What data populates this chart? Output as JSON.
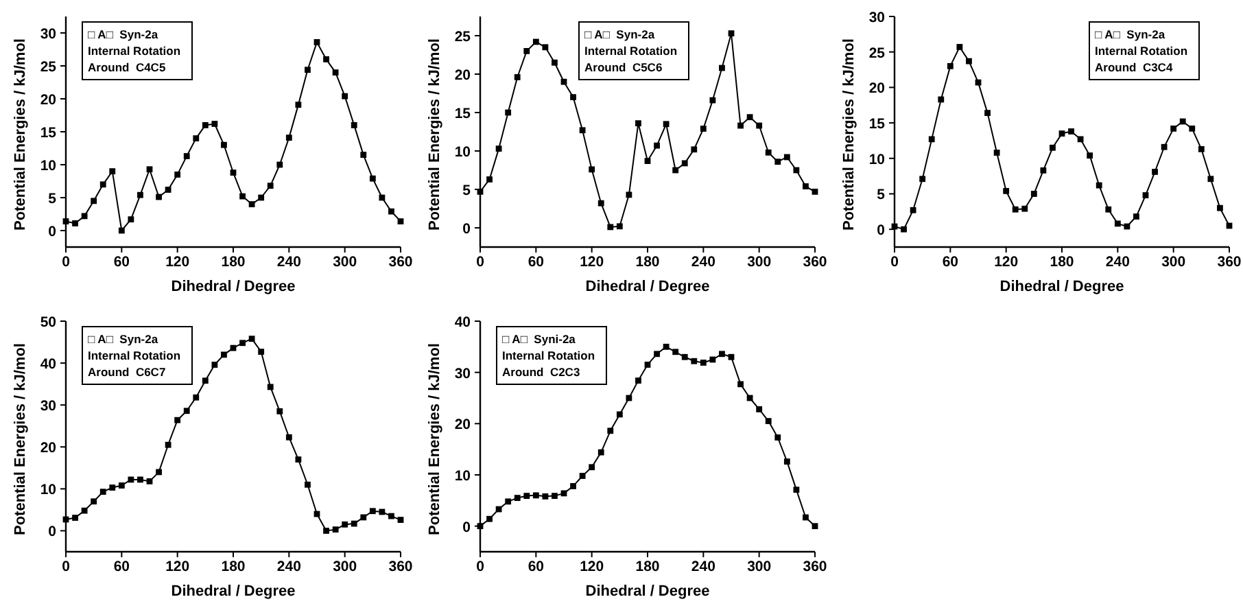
{
  "chart_data": [
    {
      "type": "line",
      "xlabel": "Dihedral / Degree",
      "ylabel": "Potential Energies / kJ/mol",
      "xlim": [
        0,
        360
      ],
      "xticks": [
        0,
        60,
        120,
        180,
        240,
        300,
        360
      ],
      "ylim": [
        -2.5,
        32.5
      ],
      "yticks": [
        0,
        5,
        10,
        15,
        20,
        25,
        30
      ],
      "legend": "top left",
      "marker": "square",
      "annotations": [
        "Internal Rotation",
        "Around  C4C5"
      ],
      "x": [
        0,
        10,
        20,
        30,
        40,
        50,
        60,
        70,
        80,
        90,
        100,
        110,
        120,
        130,
        140,
        150,
        160,
        170,
        180,
        190,
        200,
        210,
        220,
        230,
        240,
        250,
        260,
        270,
        280,
        290,
        300,
        310,
        320,
        330,
        340,
        350,
        360
      ],
      "series": [
        {
          "name": "□ A□  Syn-2a",
          "color": "#000000",
          "values": [
            1.4,
            1.1,
            2.2,
            4.5,
            7,
            9,
            0,
            1.7,
            5.4,
            9.3,
            5.1,
            6.2,
            8.5,
            11.3,
            14,
            16,
            16.2,
            13,
            8.8,
            5.2,
            4,
            5,
            6.8,
            10,
            14.1,
            19.1,
            24.4,
            28.6,
            26,
            24,
            20.4,
            16,
            11.5,
            7.9,
            5,
            2.9,
            1.4
          ]
        }
      ]
    },
    {
      "type": "line",
      "xlabel": "Dihedral / Degree",
      "ylabel": "Potential Energies / kJ/mol",
      "xlim": [
        0,
        360
      ],
      "xticks": [
        0,
        60,
        120,
        180,
        240,
        300,
        360
      ],
      "ylim": [
        -2.5,
        27.5
      ],
      "yticks": [
        0,
        5,
        10,
        15,
        20,
        25
      ],
      "legend": "top",
      "marker": "square",
      "annotations": [
        "Internal Rotation",
        "Around  C5C6"
      ],
      "x": [
        0,
        10,
        20,
        30,
        40,
        50,
        60,
        70,
        80,
        90,
        100,
        110,
        120,
        130,
        140,
        150,
        160,
        170,
        180,
        190,
        200,
        210,
        220,
        230,
        240,
        250,
        260,
        270,
        280,
        290,
        300,
        310,
        320,
        330,
        340,
        350,
        360
      ],
      "series": [
        {
          "name": "□ A□  Syn-2a",
          "color": "#000000",
          "values": [
            4.7,
            6.3,
            10.3,
            15,
            19.6,
            23,
            24.2,
            23.5,
            21.5,
            19,
            17,
            12.7,
            7.6,
            3.2,
            0.1,
            0.2,
            4.3,
            13.6,
            8.7,
            10.7,
            13.5,
            7.5,
            8.4,
            10.2,
            12.9,
            16.6,
            20.8,
            25.3,
            13.3,
            14.4,
            13.3,
            9.8,
            8.6,
            9.2,
            7.5,
            5.4,
            4.7
          ]
        }
      ]
    },
    {
      "type": "line",
      "xlabel": "Dihedral / Degree",
      "ylabel": "Potential Energies / kJ/mol",
      "xlim": [
        0,
        360
      ],
      "xticks": [
        0,
        60,
        120,
        180,
        240,
        300,
        360
      ],
      "ylim": [
        -2.5,
        30
      ],
      "yticks": [
        0,
        5,
        10,
        15,
        20,
        25,
        30
      ],
      "legend": "top right",
      "marker": "square",
      "annotations": [
        "Internal Rotation",
        "Around  C3C4"
      ],
      "x": [
        0,
        10,
        20,
        30,
        40,
        50,
        60,
        70,
        80,
        90,
        100,
        110,
        120,
        130,
        140,
        150,
        160,
        170,
        180,
        190,
        200,
        210,
        220,
        230,
        240,
        250,
        260,
        270,
        280,
        290,
        300,
        310,
        320,
        330,
        340,
        350,
        360
      ],
      "series": [
        {
          "name": "□ A□  Syn-2a",
          "color": "#000000",
          "values": [
            0.4,
            0,
            2.7,
            7.1,
            12.7,
            18.3,
            23,
            25.7,
            23.7,
            20.7,
            16.4,
            10.8,
            5.4,
            2.8,
            2.9,
            5,
            8.3,
            11.5,
            13.5,
            13.8,
            12.7,
            10.4,
            6.2,
            2.8,
            0.8,
            0.4,
            1.8,
            4.8,
            8.1,
            11.6,
            14.2,
            15.2,
            14.2,
            11.3,
            7.1,
            3,
            0.5
          ]
        }
      ]
    },
    {
      "type": "line",
      "xlabel": "Dihedral / Degree",
      "ylabel": "Potential Energies / kJ/mol",
      "xlim": [
        0,
        360
      ],
      "xticks": [
        0,
        60,
        120,
        180,
        240,
        300,
        360
      ],
      "ylim": [
        -5,
        50
      ],
      "yticks": [
        0,
        10,
        20,
        30,
        40,
        50
      ],
      "legend": "top left",
      "marker": "square",
      "annotations": [
        "Internal Rotation",
        "Around  C6C7"
      ],
      "x": [
        0,
        10,
        20,
        30,
        40,
        50,
        60,
        70,
        80,
        90,
        100,
        110,
        120,
        130,
        140,
        150,
        160,
        170,
        180,
        190,
        200,
        210,
        220,
        230,
        240,
        250,
        260,
        270,
        280,
        290,
        300,
        310,
        320,
        330,
        340,
        350,
        360
      ],
      "series": [
        {
          "name": "□ A□  Syn-2a",
          "color": "#000000",
          "values": [
            2.7,
            3.1,
            4.8,
            7,
            9.3,
            10.3,
            10.8,
            12.2,
            12.2,
            11.8,
            14,
            20.5,
            26.4,
            28.6,
            31.8,
            35.8,
            39.6,
            42,
            43.6,
            44.8,
            45.8,
            42.7,
            34.3,
            28.5,
            22.3,
            17,
            11,
            4,
            0,
            0.3,
            1.5,
            1.7,
            3.2,
            4.7,
            4.5,
            3.5,
            2.6
          ]
        }
      ]
    },
    {
      "type": "line",
      "xlabel": "Dihedral / Degree",
      "ylabel": "Potential Energies / kJ/mol",
      "xlim": [
        0,
        360
      ],
      "xticks": [
        0,
        60,
        120,
        180,
        240,
        300,
        360
      ],
      "ylim": [
        -5,
        40
      ],
      "yticks": [
        0,
        10,
        20,
        30,
        40
      ],
      "legend": "top left",
      "marker": "square",
      "annotations": [
        "Internal Rotation",
        "Around  C2C3"
      ],
      "x": [
        0,
        10,
        20,
        30,
        40,
        50,
        60,
        70,
        80,
        90,
        100,
        110,
        120,
        130,
        140,
        150,
        160,
        170,
        180,
        190,
        200,
        210,
        220,
        230,
        240,
        250,
        260,
        270,
        280,
        290,
        300,
        310,
        320,
        330,
        340,
        350,
        360
      ],
      "series": [
        {
          "name": "□ A□  Syni-2a",
          "color": "#000000",
          "values": [
            0,
            1.4,
            3.3,
            4.8,
            5.5,
            5.9,
            6,
            5.8,
            5.9,
            6.4,
            7.8,
            9.8,
            11.5,
            14.4,
            18.6,
            21.8,
            25,
            28.4,
            31.5,
            33.6,
            35,
            34,
            33,
            32.2,
            31.9,
            32.5,
            33.6,
            33,
            27.7,
            25,
            22.8,
            20.5,
            17.3,
            12.6,
            7.1,
            1.7,
            0
          ]
        }
      ]
    }
  ]
}
